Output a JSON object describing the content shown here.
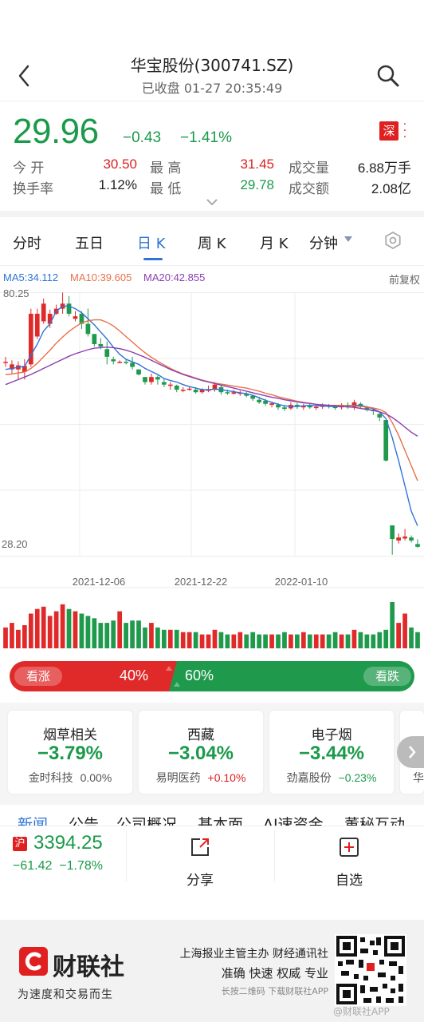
{
  "header": {
    "title": "华宝股份(300741.SZ)",
    "subtitle": "已收盘 01-27 20:35:49"
  },
  "quote": {
    "price": "29.96",
    "change": "−0.43",
    "change_pct": "−1.41%",
    "exchange_badge": "深",
    "stats": [
      {
        "label": "今 开",
        "value": "30.50",
        "color": "red"
      },
      {
        "label": "最 高",
        "value": "31.45",
        "color": "red"
      },
      {
        "label": "成交量",
        "value": "6.88万手",
        "color": "black"
      },
      {
        "label": "换手率",
        "value": "1.12%",
        "color": "black"
      },
      {
        "label": "最 低",
        "value": "29.78",
        "color": "green"
      },
      {
        "label": "成交额",
        "value": "2.08亿",
        "color": "black"
      }
    ]
  },
  "tabs": [
    "分时",
    "五日",
    "日 K",
    "周 K",
    "月 K",
    "分钟"
  ],
  "active_tab": "日 K",
  "chart": {
    "ma5_label": "MA5:34.112",
    "ma10_label": "MA10:39.605",
    "ma20_label": "MA20:42.855",
    "adjust_label": "前复权",
    "y_max_label": "80.25",
    "y_min_label": "28.20",
    "x_labels": [
      "2021-12-06",
      "2021-12-22",
      "2022-01-10"
    ],
    "colors": {
      "up": "#e02a2a",
      "down": "#1f9a4c",
      "ma5": "#2f73d8",
      "ma10": "#e8704a",
      "ma20": "#8a3fb0"
    }
  },
  "chart_data": {
    "type": "candlestick",
    "title": "",
    "ylim": [
      28.2,
      80.25
    ],
    "x_tick_labels": [
      "2021-12-06",
      "2021-12-22",
      "2022-01-10"
    ],
    "ma_labels": [
      "MA5:34.112",
      "MA10:39.605",
      "MA20:42.855"
    ],
    "candles": [
      [
        66.5,
        66.5,
        67.5,
        65.5
      ],
      [
        65.0,
        66.0,
        66.8,
        64.2
      ],
      [
        65.0,
        65.8,
        66.6,
        63.0
      ],
      [
        64.5,
        65.7,
        67.0,
        63.0
      ],
      [
        66.0,
        76.0,
        77.0,
        65.5
      ],
      [
        71.5,
        76.0,
        77.0,
        71.0
      ],
      [
        74.5,
        78.0,
        79.0,
        74.0
      ],
      [
        74.0,
        76.0,
        76.8,
        73.2
      ],
      [
        76.0,
        77.0,
        77.8,
        75.8
      ],
      [
        77.0,
        78.0,
        80.2,
        76.0
      ],
      [
        78.0,
        76.0,
        79.5,
        75.5
      ],
      [
        75.0,
        75.5,
        76.5,
        74.5
      ],
      [
        76.0,
        74.0,
        76.5,
        73.0
      ],
      [
        74.0,
        72.0,
        77.0,
        71.5
      ],
      [
        72.0,
        70.0,
        72.0,
        69.5
      ],
      [
        70.0,
        69.5,
        71.2,
        69.0
      ],
      [
        69.0,
        67.5,
        70.5,
        66.0
      ],
      [
        67.0,
        66.6,
        67.5,
        66.0
      ],
      [
        66.5,
        66.5,
        66.8,
        66.2
      ],
      [
        66.5,
        66.4,
        67.0,
        66.0
      ],
      [
        66.3,
        65.5,
        67.5,
        65.0
      ],
      [
        65.0,
        64.0,
        65.0,
        63.8
      ],
      [
        63.5,
        62.5,
        63.5,
        62.0
      ],
      [
        62.5,
        63.5,
        64.2,
        62.0
      ],
      [
        63.5,
        63.0,
        63.8,
        62.0
      ],
      [
        62.5,
        62.0,
        63.2,
        61.5
      ],
      [
        62.0,
        62.0,
        62.5,
        61.0
      ],
      [
        61.8,
        61.0,
        62.0,
        60.5
      ],
      [
        61.0,
        61.0,
        61.5,
        60.5
      ],
      [
        61.0,
        61.2,
        61.6,
        60.8
      ],
      [
        61.0,
        60.5,
        61.5,
        60.2
      ],
      [
        60.5,
        61.0,
        61.3,
        60.2
      ],
      [
        61.0,
        61.0,
        61.8,
        60.5
      ],
      [
        61.0,
        62.0,
        62.5,
        60.6
      ],
      [
        61.5,
        60.5,
        62.0,
        60.0
      ],
      [
        60.5,
        60.3,
        61.0,
        60.0
      ],
      [
        60.2,
        60.5,
        61.0,
        60.0
      ],
      [
        60.3,
        60.4,
        60.8,
        59.8
      ],
      [
        60.2,
        59.8,
        60.5,
        59.5
      ],
      [
        59.8,
        59.2,
        60.0,
        58.8
      ],
      [
        59.0,
        58.5,
        59.6,
        58.2
      ],
      [
        58.8,
        58.2,
        59.2,
        57.8
      ],
      [
        58.0,
        58.3,
        58.6,
        57.5
      ],
      [
        58.0,
        57.5,
        58.4,
        57.0
      ],
      [
        57.5,
        57.2,
        58.0,
        56.8
      ],
      [
        57.3,
        58.0,
        58.5,
        57.0
      ],
      [
        58.0,
        57.6,
        58.4,
        57.2
      ],
      [
        57.5,
        57.8,
        58.2,
        57.0
      ],
      [
        57.8,
        57.5,
        58.2,
        57.2
      ],
      [
        57.4,
        57.6,
        58.0,
        57.0
      ],
      [
        57.6,
        58.0,
        58.3,
        57.2
      ],
      [
        58.0,
        57.7,
        58.2,
        57.3
      ],
      [
        57.6,
        57.4,
        58.0,
        57.0
      ],
      [
        57.5,
        58.0,
        58.3,
        57.1
      ],
      [
        58.0,
        57.5,
        58.5,
        57.2
      ],
      [
        57.5,
        58.5,
        59.0,
        57.0
      ],
      [
        58.2,
        57.6,
        58.5,
        57.3
      ],
      [
        57.5,
        57.0,
        57.8,
        56.7
      ],
      [
        57.0,
        56.8,
        57.2,
        56.0
      ],
      [
        56.2,
        55.5,
        56.5,
        54.8
      ],
      [
        55.0,
        47.0,
        55.0,
        46.8
      ],
      [
        34.2,
        31.5,
        34.2,
        28.4
      ],
      [
        31.2,
        31.8,
        32.6,
        30.6
      ],
      [
        31.6,
        32.0,
        33.5,
        31.2
      ],
      [
        31.8,
        31.2,
        32.2,
        30.8
      ],
      [
        30.5,
        29.96,
        31.45,
        29.78
      ]
    ],
    "series": [
      {
        "name": "MA5",
        "values": [
          65.0,
          65.2,
          65.4,
          65.6,
          67.8,
          70.0,
          72.6,
          74.0,
          76.5,
          77.5,
          77.5,
          77.0,
          76.2,
          75.0,
          73.8,
          72.4,
          71.0,
          69.4,
          68.0,
          67.0,
          66.5,
          66.0,
          65.2,
          64.6,
          64.0,
          63.2,
          62.8,
          62.5,
          62.0,
          61.6,
          61.3,
          61.0,
          61.0,
          61.1,
          61.0,
          60.8,
          60.6,
          60.4,
          60.2,
          59.9,
          59.4,
          58.9,
          58.5,
          58.1,
          57.8,
          57.7,
          57.7,
          57.8,
          57.9,
          57.8,
          57.8,
          57.7,
          57.7,
          57.7,
          57.8,
          57.9,
          57.9,
          57.6,
          57.2,
          56.6,
          55.3,
          51.5,
          47.0,
          42.0,
          37.0,
          34.1
        ]
      },
      {
        "name": "MA10",
        "values": [
          64.0,
          64.1,
          64.3,
          64.5,
          65.2,
          66.2,
          67.5,
          68.8,
          70.2,
          71.4,
          72.5,
          73.4,
          74.2,
          74.6,
          74.8,
          74.8,
          74.3,
          73.6,
          72.6,
          71.5,
          70.4,
          69.3,
          68.3,
          67.4,
          66.6,
          65.9,
          65.2,
          64.6,
          64.1,
          63.7,
          63.3,
          62.9,
          62.6,
          62.3,
          62.1,
          61.9,
          61.7,
          61.5,
          61.3,
          61.0,
          60.7,
          60.3,
          60.0,
          59.6,
          59.3,
          59.0,
          58.7,
          58.5,
          58.3,
          58.1,
          58.0,
          57.9,
          57.9,
          57.9,
          57.8,
          57.8,
          57.7,
          57.6,
          57.4,
          57.1,
          56.5,
          54.5,
          52.0,
          49.0,
          46.0,
          43.0
        ]
      },
      {
        "name": "MA20",
        "values": [
          62.0,
          62.5,
          63.0,
          63.5,
          64.0,
          64.6,
          65.2,
          65.8,
          66.4,
          67.0,
          67.6,
          68.1,
          68.5,
          68.9,
          69.2,
          69.3,
          69.4,
          69.3,
          69.1,
          68.8,
          68.4,
          67.9,
          67.4,
          66.8,
          66.2,
          65.6,
          65.0,
          64.5,
          64.0,
          63.6,
          63.2,
          62.8,
          62.5,
          62.2,
          61.9,
          61.6,
          61.3,
          61.0,
          60.7,
          60.4,
          60.1,
          59.8,
          59.5,
          59.3,
          59.0,
          58.8,
          58.6,
          58.4,
          58.3,
          58.1,
          58.0,
          57.9,
          57.8,
          57.7,
          57.6,
          57.5,
          57.3,
          57.1,
          56.9,
          56.6,
          56.2,
          55.5,
          54.6,
          53.6,
          52.6,
          51.8
        ]
      }
    ],
    "volume_relative": [
      0.45,
      0.55,
      0.4,
      0.5,
      0.75,
      0.85,
      0.9,
      0.7,
      0.8,
      0.95,
      0.85,
      0.8,
      0.75,
      0.7,
      0.65,
      0.55,
      0.55,
      0.6,
      0.8,
      0.55,
      0.6,
      0.6,
      0.45,
      0.55,
      0.45,
      0.4,
      0.4,
      0.4,
      0.35,
      0.35,
      0.35,
      0.3,
      0.3,
      0.4,
      0.35,
      0.3,
      0.3,
      0.35,
      0.3,
      0.35,
      0.3,
      0.3,
      0.3,
      0.3,
      0.35,
      0.3,
      0.3,
      0.35,
      0.3,
      0.3,
      0.3,
      0.3,
      0.35,
      0.3,
      0.3,
      0.4,
      0.35,
      0.3,
      0.3,
      0.35,
      0.4,
      1.0,
      0.55,
      0.75,
      0.45,
      0.35
    ]
  },
  "sentiment": {
    "bull_label": "看涨",
    "bull_pct": "40%",
    "bear_pct": "60%",
    "bear_label": "看跌",
    "bull_share": 0.4
  },
  "sectors": [
    {
      "name": "烟草相关",
      "pct": "−3.79%",
      "stock": "金时科技",
      "stock_pct": "0.00%",
      "stock_color": "#555555"
    },
    {
      "name": "西藏",
      "pct": "−3.04%",
      "stock": "易明医药",
      "stock_pct": "+0.10%",
      "stock_color": "#e02020"
    },
    {
      "name": "电子烟",
      "pct": "−3.44%",
      "stock": "劲嘉股份",
      "stock_pct": "−0.23%",
      "stock_color": "#1a9a4a"
    }
  ],
  "sector_peek_text": "华",
  "news_tabs": [
    "新闻",
    "公告",
    "公司概况",
    "基本面",
    "AI速资金",
    "董秘互动"
  ],
  "bottom": {
    "index_badge": "沪",
    "index_value": "3394.25",
    "index_change": "−61.42",
    "index_pct": "−1.78%",
    "share_label": "分享",
    "watch_label": "自选"
  },
  "footer": {
    "brand": "财联社",
    "slogan": "为速度和交易而生",
    "line1": "上海报业主管主办 财经通讯社",
    "line2": "准确 快速 权威 专业",
    "line3": "长按二维码 下载财联社APP",
    "watermark": "@财联社APP"
  }
}
